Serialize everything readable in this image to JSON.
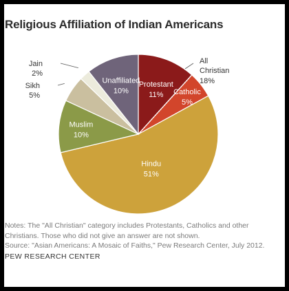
{
  "chart_data": {
    "type": "pie",
    "title": "Religious Affiliation of Indian Americans",
    "slices": [
      {
        "label": "Protestant",
        "value": 11,
        "value_label": "11%",
        "color": "#8b1a1a",
        "label_color": "#ffffff"
      },
      {
        "label": "Catholic",
        "value": 5,
        "value_label": "5%",
        "color": "#d2452b",
        "label_color": "#ffffff"
      },
      {
        "label": "Hindu",
        "value": 51,
        "value_label": "51%",
        "color": "#cda23b",
        "label_color": "#ffffff"
      },
      {
        "label": "Muslim",
        "value": 10,
        "value_label": "10%",
        "color": "#8b9a48",
        "label_color": "#ffffff"
      },
      {
        "label": "Sikh",
        "value": 5,
        "value_label": "5%",
        "color": "#cabf9f",
        "label_color": "#333333"
      },
      {
        "label": "Jain",
        "value": 2,
        "value_label": "2%",
        "color": "#ecebdc",
        "label_color": "#333333"
      },
      {
        "label": "Unaffiliated",
        "value": 10,
        "value_label": "10%",
        "color": "#6f647a",
        "label_color": "#ffffff"
      }
    ],
    "annotation": {
      "label": "All Christian",
      "value_label": "18%",
      "covers": [
        "Protestant",
        "Catholic"
      ]
    }
  },
  "notes": {
    "line1": "Notes: The \"All Christian\" category includes Protestants, Catholics and other",
    "line2": "Christians. Those who did not give an answer are not shown.",
    "line3": "Source: \"Asian Americans: A Mosaic of Faiths,\" Pew Research Center, July 2012."
  },
  "credit": "PEW RESEARCH CENTER"
}
